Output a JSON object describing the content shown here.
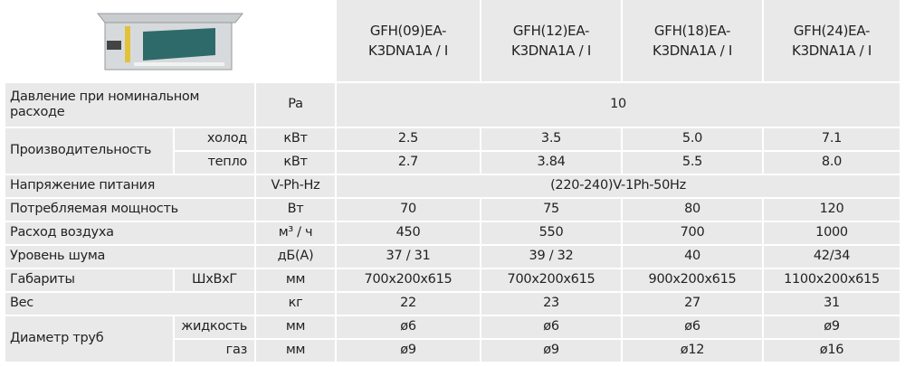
{
  "models": [
    "GFH(09)EA-\nK3DNA1A / I",
    "GFH(12)EA-\nK3DNA1A / I",
    "GFH(18)EA-\nK3DNA1A / I",
    "GFH(24)EA-\nK3DNA1A / I"
  ],
  "rows": {
    "pressure": {
      "label": "Давление при номинальном расходе",
      "unit": "Pa",
      "value": "10"
    },
    "capacity": {
      "label": "Производительность",
      "cool": {
        "sub": "холод",
        "unit": "кВт",
        "values": [
          "2.5",
          "3.5",
          "5.0",
          "7.1"
        ]
      },
      "heat": {
        "sub": "тепло",
        "unit": "кВт",
        "values": [
          "2.7",
          "3.84",
          "5.5",
          "8.0"
        ]
      }
    },
    "voltage": {
      "label": "Напряжение питания",
      "unit": "V-Ph-Hz",
      "value": "(220-240)V-1Ph-50Hz"
    },
    "power": {
      "label": "Потребляемая мощность",
      "unit": "Вт",
      "values": [
        "70",
        "75",
        "80",
        "120"
      ]
    },
    "airflow": {
      "label": "Расход воздуха",
      "unit": "м³ / ч",
      "values": [
        "450",
        "550",
        "700",
        "1000"
      ]
    },
    "noise": {
      "label": "Уровень шума",
      "unit": "дБ(А)",
      "values": [
        "37 / 31",
        "39 / 32",
        "40",
        "42/34"
      ]
    },
    "dims": {
      "label": "Габариты",
      "sub": "ШxВxГ",
      "unit": "мм",
      "values": [
        "700x200x615",
        "700x200x615",
        "900x200x615",
        "1100x200x615"
      ]
    },
    "weight": {
      "label": "Вес",
      "unit": "кг",
      "values": [
        "22",
        "23",
        "27",
        "31"
      ]
    },
    "pipes": {
      "label": "Диаметр труб",
      "liquid": {
        "sub": "жидкость",
        "unit": "мм",
        "values": [
          "ø6",
          "ø6",
          "ø6",
          "ø9"
        ]
      },
      "gas": {
        "sub": "газ",
        "unit": "мм",
        "values": [
          "ø9",
          "ø9",
          "ø12",
          "ø16"
        ]
      }
    }
  },
  "colors": {
    "cell": "#e9e9e9",
    "border": "#ffffff",
    "coil": "#2f6a6a"
  }
}
